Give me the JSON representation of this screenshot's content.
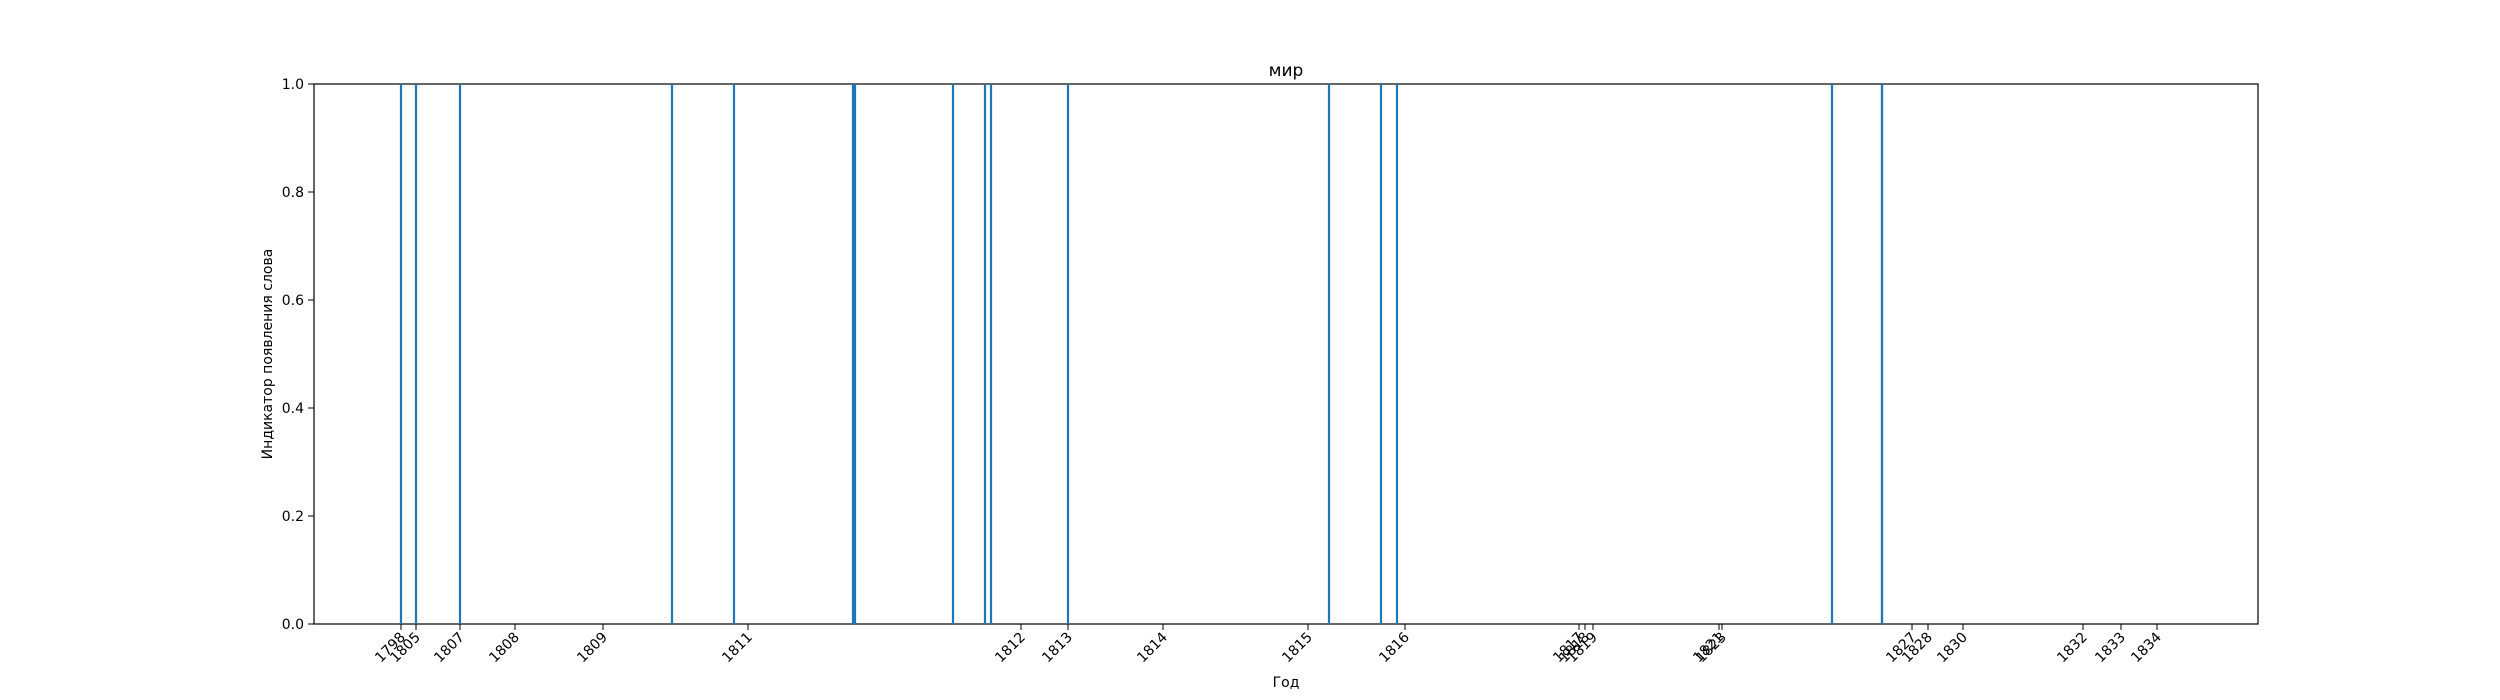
{
  "chart_data": {
    "type": "bar",
    "title": "мир",
    "xlabel": "Год",
    "ylabel": "Индикатор появления слова",
    "ylim": [
      0,
      1
    ],
    "y_ticks": [
      "0.0",
      "0.2",
      "0.4",
      "0.6",
      "0.8",
      "1.0"
    ],
    "grid": false,
    "series_color": "#1f77b4",
    "x_tick_labels": [
      "1798",
      "1805",
      "1807",
      "1808",
      "1809",
      "1811",
      "1812",
      "1813",
      "1814",
      "1815",
      "1816",
      "1817",
      "1818",
      "1819",
      "1821",
      "1823",
      "1827",
      "1828",
      "1830",
      "1832",
      "1833",
      "1834"
    ],
    "occurrences": [
      "1798",
      "1805",
      "1807",
      "1810",
      "1810",
      "1811",
      "1811",
      "1811",
      "1812",
      "1812",
      "1812",
      "1813",
      "1815",
      "1815",
      "1816",
      "1825",
      "1826"
    ],
    "values": [
      1,
      1,
      1,
      1,
      1,
      1,
      1,
      1,
      1,
      1,
      1,
      1,
      1,
      1,
      1,
      1,
      1
    ]
  }
}
